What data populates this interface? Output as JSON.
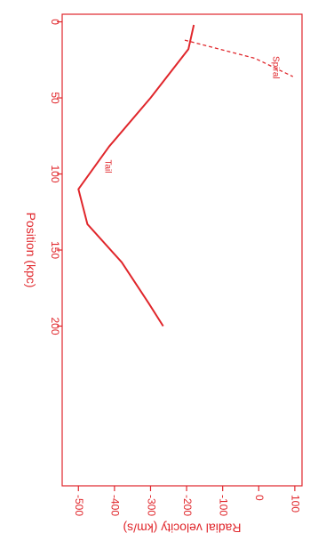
{
  "chart_data": {
    "type": "line",
    "rotation": "rotated 90 degrees clockwise",
    "xlabel": "Position (kpc)",
    "ylabel": "Radial velocity (km/s)",
    "xlim": [
      -5,
      305
    ],
    "ylim": [
      -545,
      120
    ],
    "x_ticks": [
      0,
      50,
      100,
      150,
      200
    ],
    "x_tick_labels": [
      "0",
      "50",
      "100",
      "150",
      "200"
    ],
    "y_ticks": [
      100,
      0,
      -100,
      -200,
      -300,
      -400,
      -500
    ],
    "y_tick_labels": [
      "100",
      "0",
      "-100",
      "-200",
      "-300",
      "-400",
      "-500"
    ],
    "grid": false,
    "series": [
      {
        "name": "Tail",
        "style": "solid",
        "color": "#e0262b",
        "points": [
          [
            2,
            -180
          ],
          [
            18,
            -195
          ],
          [
            50,
            -300
          ],
          [
            82,
            -415
          ],
          [
            110,
            -500
          ],
          [
            133,
            -475
          ],
          [
            158,
            -380
          ],
          [
            185,
            -305
          ],
          [
            200,
            -265
          ]
        ]
      },
      {
        "name": "Spiral",
        "style": "dashed",
        "color": "#e0262b",
        "points": [
          [
            12,
            -205
          ],
          [
            24,
            -10
          ],
          [
            36,
            95
          ]
        ]
      }
    ],
    "annotations": [
      {
        "text": "Tail",
        "x": 95,
        "y": -425
      },
      {
        "text": "Spiral",
        "x": 30,
        "y": 40
      }
    ]
  },
  "colors": {
    "accent": "#e0262b",
    "background": "#ffffff"
  }
}
